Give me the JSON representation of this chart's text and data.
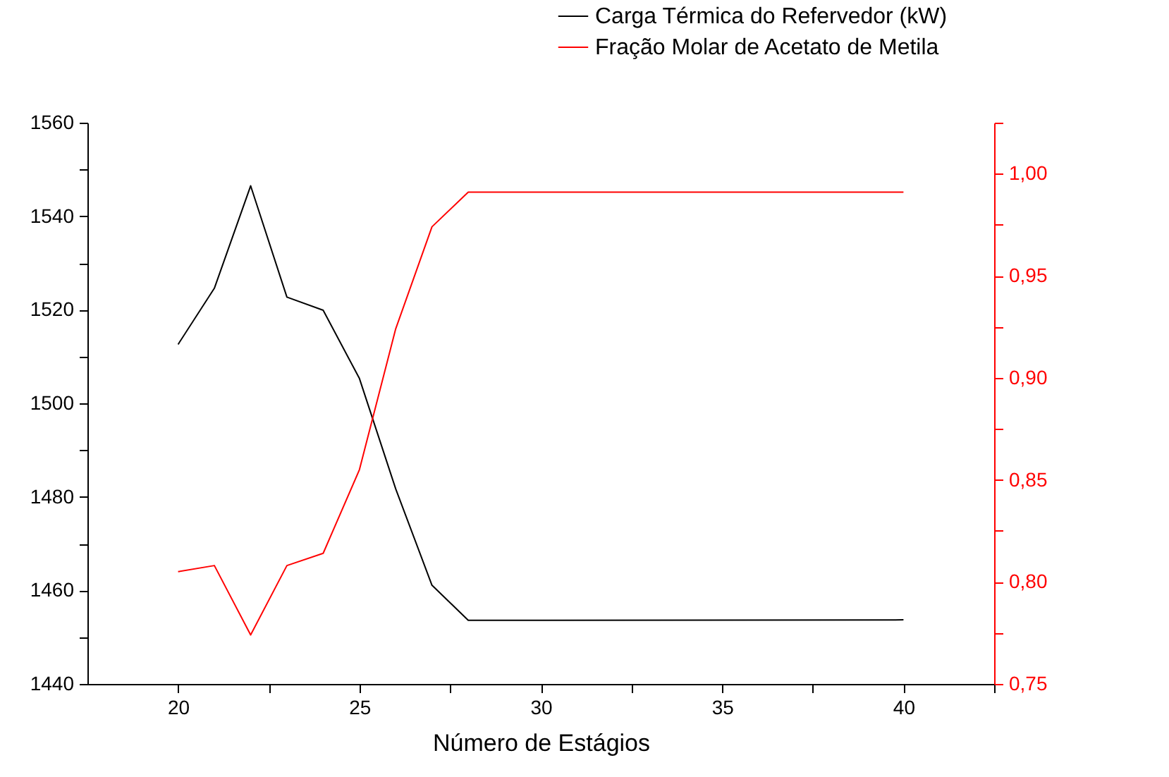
{
  "chart_data": {
    "type": "line",
    "xlabel": "Número de Estágios",
    "x": [
      20,
      21,
      22,
      23,
      24,
      25,
      26,
      27,
      28,
      40
    ],
    "series": [
      {
        "name": "Carga Térmica do Refervedor (kW)",
        "color": "#000000",
        "values": [
          1512.6,
          1524.6,
          1546.5,
          1522.7,
          1519.9,
          1505.3,
          1481.7,
          1461.1,
          1453.6,
          1453.7
        ]
      },
      {
        "name": "Fração Molar de Acetato de Metila",
        "color": "#ff0000",
        "axis": "y2",
        "values": [
          0.805,
          0.808,
          0.774,
          0.808,
          0.814,
          0.855,
          0.924,
          0.974,
          0.991,
          0.991
        ]
      }
    ],
    "xlim": [
      17.5,
      42.5
    ],
    "xticks": [
      20,
      {
        "value": 22.5,
        "label": null
      },
      25,
      {
        "value": 27.5,
        "label": null
      },
      30,
      {
        "value": 32.5,
        "label": null
      },
      35,
      {
        "value": 37.5,
        "label": null
      },
      40,
      {
        "value": 42.5,
        "label": null
      }
    ],
    "ylim": [
      1440,
      1560
    ],
    "yticks": [
      1440,
      {
        "value": 1450,
        "label": null
      },
      1460,
      {
        "value": 1470,
        "label": null
      },
      1480,
      {
        "value": 1490,
        "label": null
      },
      1500,
      {
        "value": 1510,
        "label": null
      },
      1520,
      {
        "value": 1530,
        "label": null
      },
      1540,
      {
        "value": 1550,
        "label": null
      },
      1560
    ],
    "y2lim": [
      0.75,
      1.025
    ],
    "y2ticks": [
      {
        "value": 0.75,
        "label": "0,75"
      },
      {
        "value": 0.775,
        "label": null
      },
      {
        "value": 0.8,
        "label": "0,80"
      },
      {
        "value": 0.825,
        "label": null
      },
      {
        "value": 0.85,
        "label": "0,85"
      },
      {
        "value": 0.875,
        "label": null
      },
      {
        "value": 0.9,
        "label": "0,90"
      },
      {
        "value": 0.925,
        "label": null
      },
      {
        "value": 0.95,
        "label": "0,95"
      },
      {
        "value": 0.975,
        "label": null
      },
      {
        "value": 1.0,
        "label": "1,00"
      },
      {
        "value": 1.025,
        "label": null
      }
    ],
    "grid": false,
    "legend": "top right",
    "marker": "none",
    "line_style": "solid"
  }
}
